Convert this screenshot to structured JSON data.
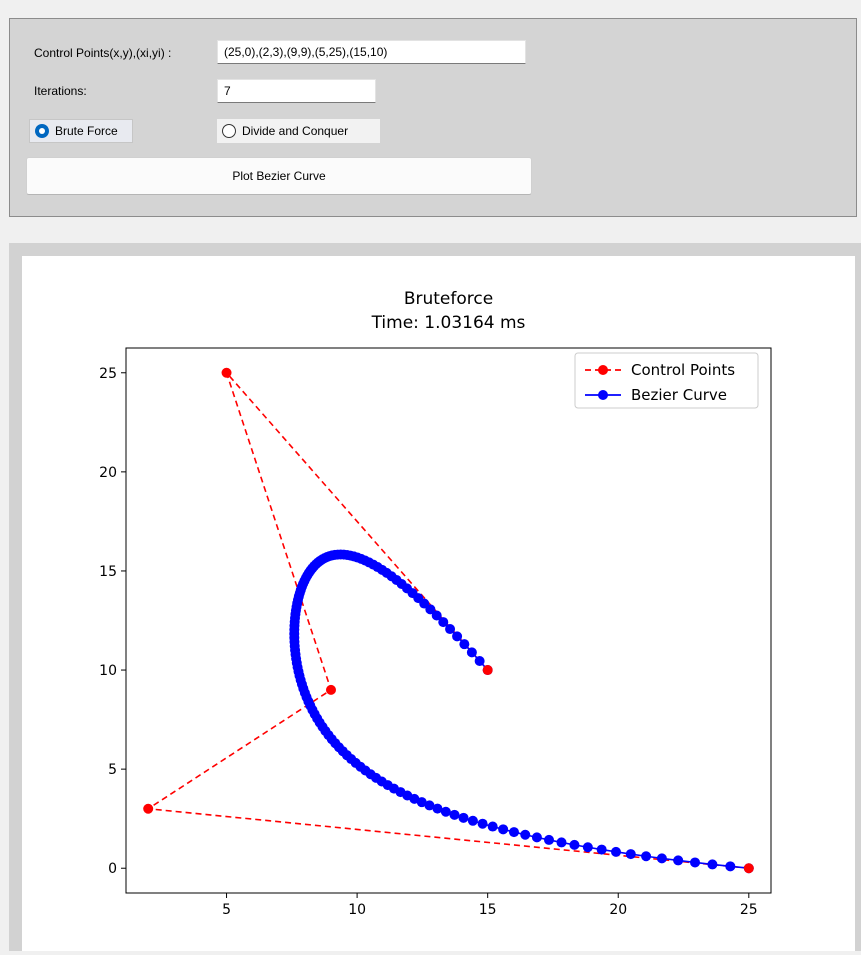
{
  "controls": {
    "points_label": "Control Points(x,y),(xi,yi) :",
    "points_value": "(25,0),(2,3),(9,9),(5,25),(15,10)",
    "iterations_label": "Iterations:",
    "iterations_value": "7",
    "radio_bruteforce_label": "Brute Force",
    "radio_divide_label": "Divide and Conquer",
    "selected_method": "Brute Force",
    "plot_button_label": "Plot Bezier Curve"
  },
  "chart_data": {
    "type": "line",
    "title": "Bruteforce",
    "subtitle": "Time: 1.03164 ms",
    "xlabel": "",
    "ylabel": "",
    "xlim": [
      1.15,
      25.85
    ],
    "ylim": [
      -1.25,
      26.25
    ],
    "xticks": [
      5,
      10,
      15,
      20,
      25
    ],
    "yticks": [
      0,
      5,
      10,
      15,
      20,
      25
    ],
    "grid": false,
    "legend_position": "top-right",
    "series": [
      {
        "name": "Control Points",
        "color": "#ff0000",
        "linestyle": "dashed",
        "marker": "circle",
        "points": [
          [
            25,
            0
          ],
          [
            2,
            3
          ],
          [
            9,
            9
          ],
          [
            5,
            25
          ],
          [
            15,
            10
          ]
        ]
      },
      {
        "name": "Bezier Curve",
        "color": "#0000ff",
        "linestyle": "solid",
        "marker": "circle",
        "bezier_control_points": [
          [
            25,
            0
          ],
          [
            2,
            3
          ],
          [
            9,
            9
          ],
          [
            5,
            25
          ],
          [
            15,
            10
          ]
        ],
        "samples": 129
      }
    ]
  }
}
